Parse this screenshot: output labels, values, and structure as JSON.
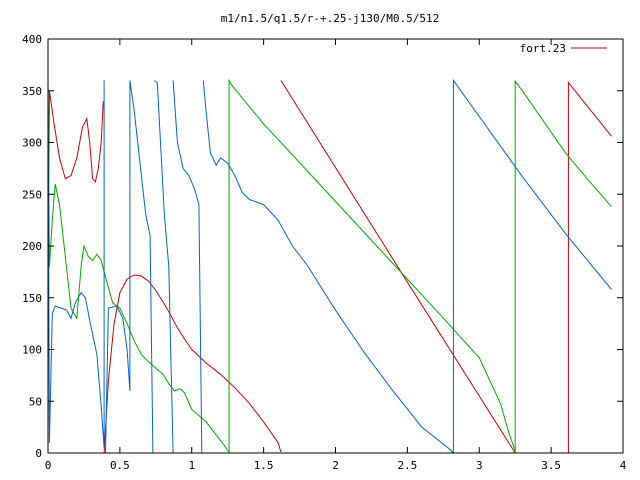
{
  "chart_data": {
    "type": "line",
    "title": "m1/n1.5/q1.5/r-+.25-j130/M0.5/512",
    "xlabel": "",
    "ylabel": "",
    "xlim": [
      0,
      4
    ],
    "ylim": [
      0,
      400
    ],
    "xticks": [
      0,
      0.5,
      1,
      1.5,
      2,
      2.5,
      3,
      3.5,
      4
    ],
    "xtick_labels": [
      "0",
      "0.5",
      "1",
      "1.5",
      "2",
      "2.5",
      "3",
      "3.5",
      "4"
    ],
    "yticks": [
      0,
      50,
      100,
      150,
      200,
      250,
      300,
      350,
      400
    ],
    "ytick_labels": [
      "0",
      "50",
      "100",
      "150",
      "200",
      "250",
      "300",
      "350",
      "400"
    ],
    "grid": false,
    "legend": {
      "position": "top-right",
      "entries": [
        {
          "label": "fort.23",
          "color": "#cc0000"
        }
      ]
    },
    "series": [
      {
        "color": "#cc0000",
        "segments": [
          [
            [
              0,
              180
            ],
            [
              0.01,
              350
            ],
            [
              0.04,
              320
            ],
            [
              0.08,
              285
            ],
            [
              0.12,
              265
            ],
            [
              0.16,
              268
            ],
            [
              0.2,
              285
            ],
            [
              0.24,
              315
            ],
            [
              0.27,
              323
            ],
            [
              0.29,
              300
            ],
            [
              0.31,
              265
            ],
            [
              0.33,
              262
            ],
            [
              0.35,
              275
            ],
            [
              0.37,
              300
            ],
            [
              0.385,
              340
            ]
          ],
          [
            [
              0.39,
              0
            ],
            [
              0.42,
              70
            ],
            [
              0.46,
              125
            ],
            [
              0.5,
              155
            ],
            [
              0.55,
              168
            ],
            [
              0.6,
              172
            ],
            [
              0.65,
              171
            ],
            [
              0.7,
              166
            ],
            [
              0.75,
              157
            ],
            [
              0.8,
              146
            ],
            [
              0.85,
              134
            ],
            [
              0.9,
              121
            ],
            [
              0.95,
              110
            ],
            [
              1.0,
              100
            ],
            [
              1.1,
              87
            ],
            [
              1.2,
              76
            ],
            [
              1.3,
              63
            ],
            [
              1.4,
              48
            ],
            [
              1.5,
              30
            ],
            [
              1.6,
              10
            ],
            [
              1.62,
              1
            ]
          ],
          [
            [
              1.62,
              360
            ],
            [
              2.5,
              165
            ],
            [
              3.25,
              0
            ]
          ],
          [
            [
              3.62,
              0
            ],
            [
              3.62,
              358
            ],
            [
              3.92,
              306
            ]
          ]
        ]
      },
      {
        "color": "#00aa00",
        "segments": [
          [
            [
              0,
              360
            ],
            [
              0.01,
              180
            ],
            [
              0.03,
              225
            ],
            [
              0.05,
              260
            ],
            [
              0.08,
              240
            ],
            [
              0.12,
              190
            ],
            [
              0.16,
              140
            ],
            [
              0.2,
              130
            ],
            [
              0.23,
              180
            ],
            [
              0.25,
              200
            ],
            [
              0.28,
              190
            ],
            [
              0.31,
              186
            ],
            [
              0.34,
              192
            ],
            [
              0.37,
              186
            ],
            [
              0.4,
              170
            ],
            [
              0.45,
              145
            ],
            [
              0.5,
              140
            ],
            [
              0.55,
              125
            ],
            [
              0.6,
              108
            ],
            [
              0.65,
              95
            ],
            [
              0.7,
              88
            ],
            [
              0.75,
              82
            ],
            [
              0.8,
              76
            ],
            [
              0.85,
              65
            ],
            [
              0.88,
              60
            ],
            [
              0.92,
              62
            ],
            [
              0.95,
              58
            ],
            [
              1.0,
              42
            ],
            [
              1.1,
              30
            ],
            [
              1.2,
              12
            ],
            [
              1.26,
              1
            ]
          ],
          [
            [
              1.26,
              0
            ],
            [
              1.26,
              360
            ],
            [
              1.28,
              355
            ],
            [
              1.5,
              318
            ],
            [
              1.8,
              273
            ],
            [
              2.1,
              228
            ],
            [
              2.4,
              183
            ],
            [
              2.7,
              138
            ],
            [
              3.0,
              92
            ],
            [
              3.15,
              47
            ],
            [
              3.2,
              22
            ],
            [
              3.25,
              2
            ]
          ],
          [
            [
              3.25,
              0
            ],
            [
              3.25,
              359
            ],
            [
              3.3,
              350
            ],
            [
              3.45,
              320
            ],
            [
              3.6,
              290
            ],
            [
              3.75,
              265
            ],
            [
              3.92,
              238
            ]
          ]
        ]
      },
      {
        "color": "#0066cc",
        "segments": [
          [
            [
              0,
              355
            ],
            [
              0.01,
              10
            ],
            [
              0.03,
              135
            ],
            [
              0.05,
              142
            ],
            [
              0.09,
              140
            ],
            [
              0.13,
              138
            ],
            [
              0.16,
              130
            ],
            [
              0.19,
              145
            ],
            [
              0.23,
              155
            ],
            [
              0.26,
              150
            ],
            [
              0.29,
              128
            ],
            [
              0.31,
              115
            ],
            [
              0.34,
              95
            ],
            [
              0.37,
              45
            ],
            [
              0.39,
              5
            ],
            [
              0.39,
              360
            ]
          ],
          [
            [
              0.4,
              0
            ],
            [
              0.42,
              140
            ],
            [
              0.48,
              142
            ],
            [
              0.52,
              130
            ],
            [
              0.55,
              100
            ],
            [
              0.57,
              60
            ],
            [
              0.57,
              360
            ],
            [
              0.6,
              330
            ],
            [
              0.64,
              280
            ],
            [
              0.68,
              230
            ],
            [
              0.71,
              210
            ],
            [
              0.73,
              0
            ]
          ],
          [
            [
              0.74,
              360
            ],
            [
              0.76,
              358
            ],
            [
              0.79,
              280
            ],
            [
              0.81,
              230
            ],
            [
              0.84,
              180
            ],
            [
              0.87,
              0
            ]
          ],
          [
            [
              0.87,
              360
            ],
            [
              0.9,
              300
            ],
            [
              0.94,
              275
            ],
            [
              0.98,
              268
            ],
            [
              1.02,
              255
            ],
            [
              1.05,
              240
            ],
            [
              1.07,
              0
            ]
          ],
          [
            [
              1.08,
              360
            ],
            [
              1.1,
              330
            ],
            [
              1.13,
              290
            ],
            [
              1.17,
              278
            ],
            [
              1.2,
              285
            ],
            [
              1.25,
              280
            ],
            [
              1.3,
              268
            ],
            [
              1.35,
              252
            ],
            [
              1.4,
              245
            ],
            [
              1.5,
              240
            ],
            [
              1.6,
              225
            ],
            [
              1.7,
              200
            ],
            [
              1.8,
              182
            ],
            [
              2.0,
              138
            ],
            [
              2.2,
              97
            ],
            [
              2.4,
              60
            ],
            [
              2.6,
              25
            ],
            [
              2.8,
              3
            ],
            [
              2.82,
              0
            ]
          ],
          [
            [
              2.82,
              0
            ],
            [
              2.82,
              360
            ],
            [
              3.3,
              267
            ],
            [
              3.6,
              212
            ],
            [
              3.92,
              158
            ]
          ]
        ]
      }
    ]
  }
}
